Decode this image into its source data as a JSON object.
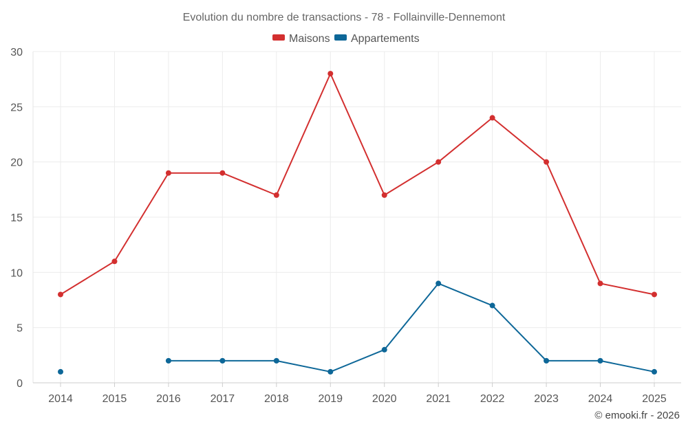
{
  "chart_data": {
    "type": "line",
    "title": "Evolution du nombre de transactions - 78 - Follainville-Dennemont",
    "categories": [
      "2014",
      "2015",
      "2016",
      "2017",
      "2018",
      "2019",
      "2020",
      "2021",
      "2022",
      "2023",
      "2024",
      "2025"
    ],
    "ylim": [
      0,
      30
    ],
    "yticks": [
      0,
      5,
      10,
      15,
      20,
      25,
      30
    ],
    "grid": true,
    "legend_position": "top-center",
    "series": [
      {
        "name": "Maisons",
        "color": "#d32f2f",
        "values": [
          8,
          11,
          19,
          19,
          17,
          28,
          17,
          20,
          24,
          20,
          9,
          8
        ]
      },
      {
        "name": "Appartements",
        "color": "#0d6798",
        "values": [
          1,
          null,
          2,
          2,
          2,
          1,
          3,
          9,
          7,
          2,
          2,
          1
        ]
      }
    ],
    "credit": "© emooki.fr - 2026"
  }
}
